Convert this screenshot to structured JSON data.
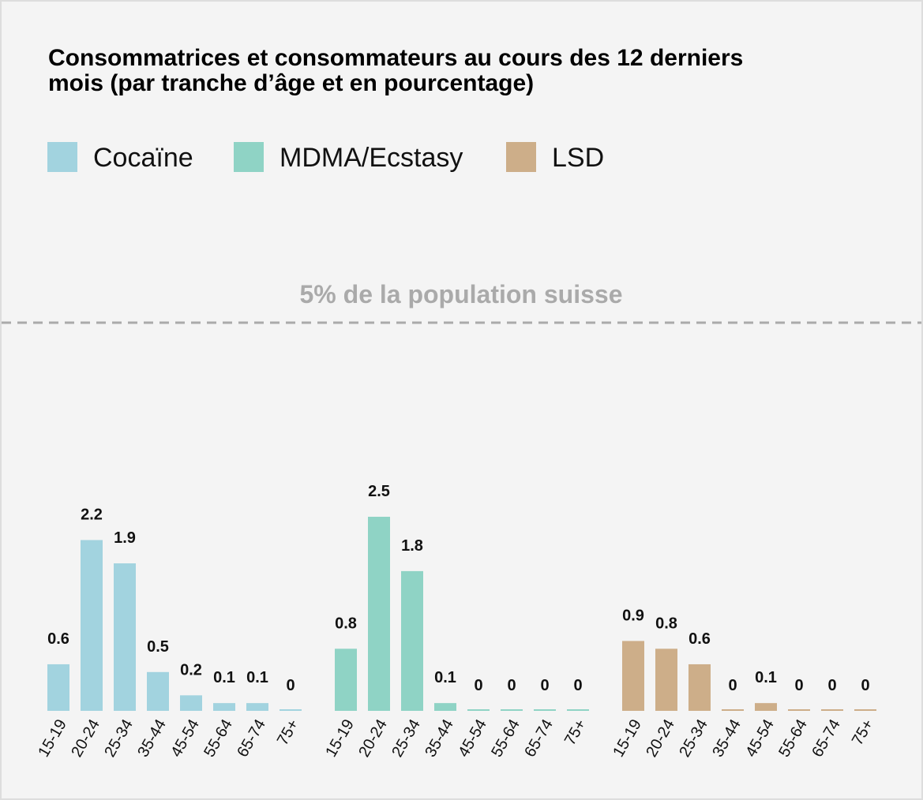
{
  "chart_data": {
    "type": "bar",
    "title": "Consommatrices et consommateurs au cours des 12 derniers mois (par tranche d’âge et en pourcentage)",
    "categories": [
      "15-19",
      "20-24",
      "25-34",
      "35-44",
      "45-54",
      "55-64",
      "65-74",
      "75+"
    ],
    "series": [
      {
        "name": "Cocaïne",
        "color": "#a2d3df",
        "values": [
          0.6,
          2.2,
          1.9,
          0.5,
          0.2,
          0.1,
          0.1,
          0
        ]
      },
      {
        "name": "MDMA/Ecstasy",
        "color": "#8fd3c5",
        "values": [
          0.8,
          2.5,
          1.8,
          0.1,
          0,
          0,
          0,
          0
        ]
      },
      {
        "name": "LSD",
        "color": "#cdae89",
        "values": [
          0.9,
          0.8,
          0.6,
          0,
          0.1,
          0,
          0,
          0
        ]
      }
    ],
    "ylim": [
      0,
      5
    ],
    "reference_line": {
      "value": 5,
      "label": "5% de la population suisse"
    }
  }
}
